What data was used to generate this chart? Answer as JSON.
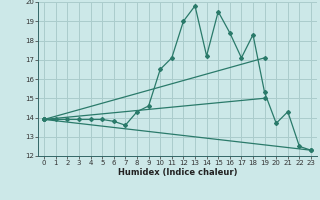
{
  "bg_color": "#cce8e8",
  "grid_color": "#aacccc",
  "line_color": "#2a7a6a",
  "xlabel": "Humidex (Indice chaleur)",
  "xlim": [
    -0.5,
    23.5
  ],
  "ylim": [
    12,
    20
  ],
  "xticks": [
    0,
    1,
    2,
    3,
    4,
    5,
    6,
    7,
    8,
    9,
    10,
    11,
    12,
    13,
    14,
    15,
    16,
    17,
    18,
    19,
    20,
    21,
    22,
    23
  ],
  "yticks": [
    12,
    13,
    14,
    15,
    16,
    17,
    18,
    19,
    20
  ],
  "line1_x": [
    0,
    1,
    2,
    3,
    4,
    5,
    6,
    7,
    8,
    9,
    10,
    11,
    12,
    13,
    14,
    15,
    16,
    17,
    18,
    19,
    20,
    21,
    22,
    23
  ],
  "line1_y": [
    13.9,
    13.9,
    13.9,
    13.9,
    13.9,
    13.9,
    13.8,
    13.6,
    14.3,
    14.6,
    16.5,
    17.1,
    19.0,
    19.8,
    17.2,
    19.5,
    18.4,
    17.1,
    18.3,
    15.3,
    13.7,
    14.3,
    12.5,
    12.3
  ],
  "line2_x": [
    0,
    19
  ],
  "line2_y": [
    13.9,
    17.1
  ],
  "line3_x": [
    0,
    23
  ],
  "line3_y": [
    13.9,
    12.3
  ],
  "line4_x": [
    0,
    19
  ],
  "line4_y": [
    13.9,
    15.0
  ]
}
